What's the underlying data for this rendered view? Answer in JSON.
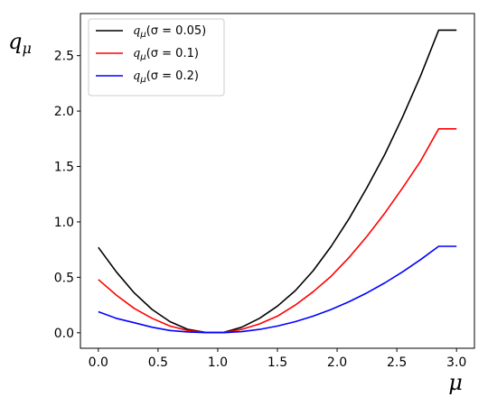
{
  "chart_data": {
    "type": "line",
    "xlabel": "μ",
    "ylabel": "qμ",
    "xlim": [
      -0.15,
      3.15
    ],
    "ylim": [
      -0.14,
      2.88
    ],
    "xticks": [
      {
        "v": 0.0,
        "label": "0.0"
      },
      {
        "v": 0.5,
        "label": "0.5"
      },
      {
        "v": 1.0,
        "label": "1.0"
      },
      {
        "v": 1.5,
        "label": "1.5"
      },
      {
        "v": 2.0,
        "label": "2.0"
      },
      {
        "v": 2.5,
        "label": "2.5"
      },
      {
        "v": 3.0,
        "label": "3.0"
      }
    ],
    "yticks": [
      {
        "v": 0.0,
        "label": "0.0"
      },
      {
        "v": 0.5,
        "label": "0.5"
      },
      {
        "v": 1.0,
        "label": "1.0"
      },
      {
        "v": 1.5,
        "label": "1.5"
      },
      {
        "v": 2.0,
        "label": "2.0"
      },
      {
        "v": 2.5,
        "label": "2.5"
      }
    ],
    "grid": false,
    "legend_position": "top-left",
    "x": [
      0.0,
      0.15,
      0.3,
      0.45,
      0.6,
      0.75,
      0.9,
      1.05,
      1.2,
      1.35,
      1.5,
      1.65,
      1.8,
      1.95,
      2.1,
      2.25,
      2.4,
      2.55,
      2.7,
      2.85,
      3.0
    ],
    "series": [
      {
        "name": "σ = 0.05",
        "color": "#000000",
        "values": [
          0.77,
          0.55,
          0.36,
          0.21,
          0.1,
          0.03,
          0.003,
          0.003,
          0.05,
          0.13,
          0.24,
          0.38,
          0.56,
          0.78,
          1.03,
          1.31,
          1.61,
          1.95,
          2.32,
          2.73,
          2.73
        ]
      },
      {
        "name": "σ = 0.1",
        "color": "#ff0000",
        "values": [
          0.48,
          0.34,
          0.22,
          0.13,
          0.06,
          0.02,
          0.002,
          0.002,
          0.03,
          0.08,
          0.15,
          0.25,
          0.37,
          0.51,
          0.68,
          0.87,
          1.08,
          1.31,
          1.55,
          1.84,
          1.84
        ]
      },
      {
        "name": "σ = 0.2",
        "color": "#0000ff",
        "values": [
          0.19,
          0.13,
          0.09,
          0.05,
          0.02,
          0.007,
          0.001,
          0.001,
          0.01,
          0.03,
          0.06,
          0.1,
          0.15,
          0.21,
          0.28,
          0.36,
          0.45,
          0.55,
          0.66,
          0.78,
          0.78
        ]
      }
    ]
  },
  "legend": {
    "items": [
      {
        "prefix": "q",
        "sub": "μ",
        "text": "(σ = 0.05)"
      },
      {
        "prefix": "q",
        "sub": "μ",
        "text": "(σ = 0.1)"
      },
      {
        "prefix": "q",
        "sub": "μ",
        "text": "(σ = 0.2)"
      }
    ]
  }
}
